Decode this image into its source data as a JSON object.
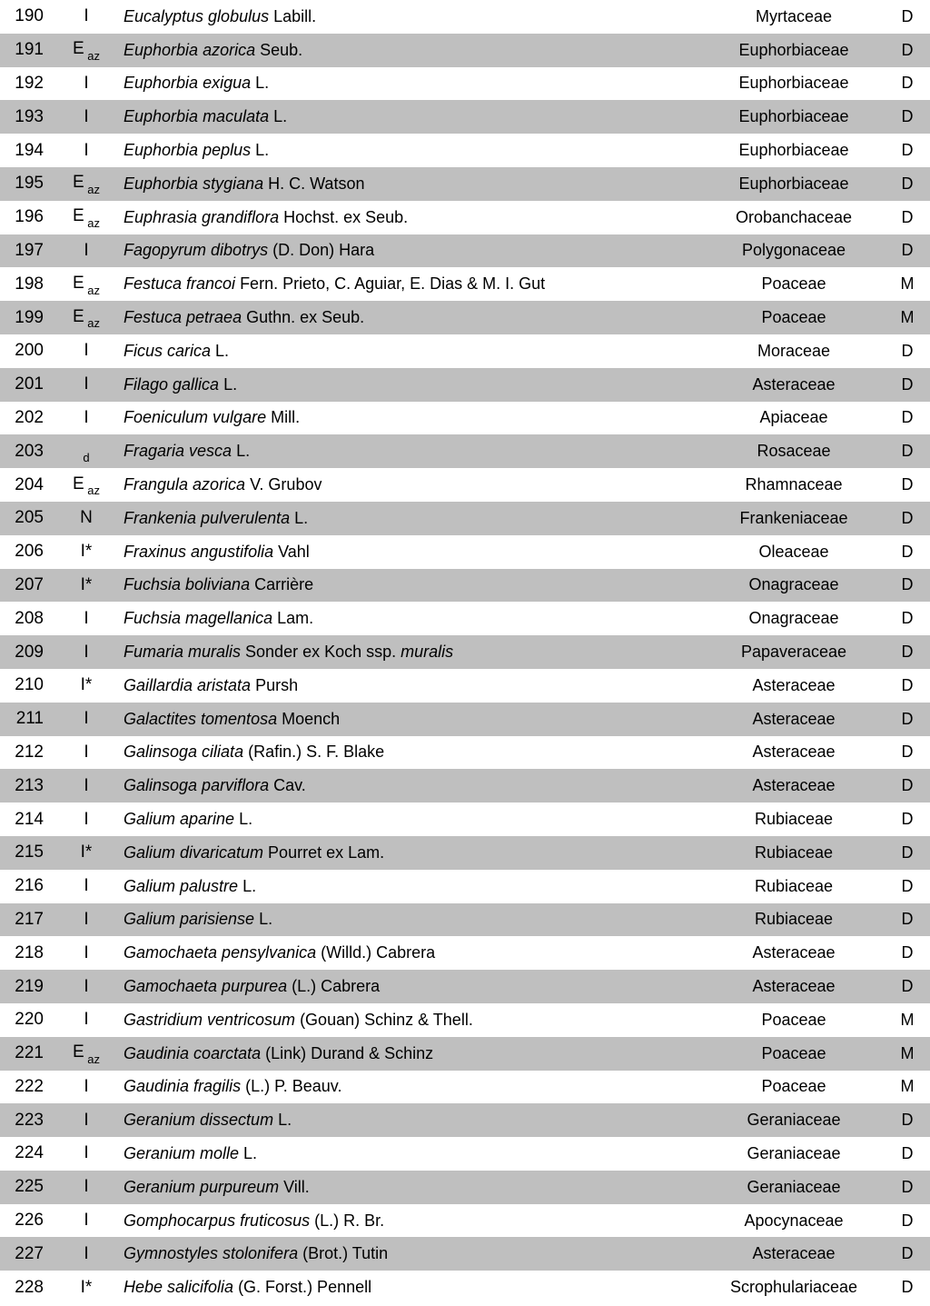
{
  "table": {
    "background_odd": "#ffffff",
    "background_even": "#bfbfbf",
    "rows": [
      {
        "num": "190",
        "status": "I",
        "sub": "",
        "genus_species": "Eucalyptus globulus",
        "author": " Labill.",
        "ssp_label": "",
        "ssp_name": "",
        "family": "Myrtaceae",
        "code": "D"
      },
      {
        "num": "191",
        "status": "E",
        "sub": "az",
        "genus_species": "Euphorbia azorica",
        "author": " Seub.",
        "ssp_label": "",
        "ssp_name": "",
        "family": "Euphorbiaceae",
        "code": "D"
      },
      {
        "num": "192",
        "status": "I",
        "sub": "",
        "genus_species": "Euphorbia exigua",
        "author": " L.",
        "ssp_label": "",
        "ssp_name": "",
        "family": "Euphorbiaceae",
        "code": "D"
      },
      {
        "num": "193",
        "status": "I",
        "sub": "",
        "genus_species": "Euphorbia maculata",
        "author": " L.",
        "ssp_label": "",
        "ssp_name": "",
        "family": "Euphorbiaceae",
        "code": "D"
      },
      {
        "num": "194",
        "status": "I",
        "sub": "",
        "genus_species": "Euphorbia peplus",
        "author": " L.",
        "ssp_label": "",
        "ssp_name": "",
        "family": "Euphorbiaceae",
        "code": "D"
      },
      {
        "num": "195",
        "status": "E",
        "sub": "az",
        "genus_species": "Euphorbia stygiana",
        "author": " H. C. Watson",
        "ssp_label": "",
        "ssp_name": "",
        "family": "Euphorbiaceae",
        "code": "D"
      },
      {
        "num": "196",
        "status": "E",
        "sub": "az",
        "genus_species": "Euphrasia grandiflora",
        "author": " Hochst. ex Seub.",
        "ssp_label": "",
        "ssp_name": "",
        "family": "Orobanchaceae",
        "code": "D"
      },
      {
        "num": "197",
        "status": "I",
        "sub": "",
        "genus_species": "Fagopyrum dibotrys",
        "author": " (D. Don) Hara",
        "ssp_label": "",
        "ssp_name": "",
        "family": "Polygonaceae",
        "code": "D"
      },
      {
        "num": "198",
        "status": "E",
        "sub": "az",
        "genus_species": "Festuca francoi",
        "author": " Fern. Prieto, C. Aguiar, E. Dias & M. I. Gut",
        "ssp_label": "",
        "ssp_name": "",
        "family": "Poaceae",
        "code": "M"
      },
      {
        "num": "199",
        "status": "E",
        "sub": "az",
        "genus_species": "Festuca petraea",
        "author": " Guthn. ex Seub.",
        "ssp_label": "",
        "ssp_name": "",
        "family": "Poaceae",
        "code": "M"
      },
      {
        "num": "200",
        "status": "I",
        "sub": "",
        "genus_species": "Ficus carica",
        "author": " L.",
        "ssp_label": "",
        "ssp_name": "",
        "family": "Moraceae",
        "code": "D"
      },
      {
        "num": "201",
        "status": "I",
        "sub": "",
        "genus_species": "Filago gallica",
        "author": " L.",
        "ssp_label": "",
        "ssp_name": "",
        "family": "Asteraceae",
        "code": "D"
      },
      {
        "num": "202",
        "status": "I",
        "sub": "",
        "genus_species": "Foeniculum vulgare",
        "author": " Mill.",
        "ssp_label": "",
        "ssp_name": "",
        "family": "Apiaceae",
        "code": "D"
      },
      {
        "num": "203",
        "status": "",
        "sub": "d",
        "genus_species": "Fragaria vesca",
        "author": " L.",
        "ssp_label": "",
        "ssp_name": "",
        "family": "Rosaceae",
        "code": "D"
      },
      {
        "num": "204",
        "status": "E",
        "sub": "az",
        "genus_species": "Frangula azorica",
        "author": " V. Grubov",
        "ssp_label": "",
        "ssp_name": "",
        "family": "Rhamnaceae",
        "code": "D"
      },
      {
        "num": "205",
        "status": "N",
        "sub": "",
        "genus_species": "Frankenia pulverulenta",
        "author": " L.",
        "ssp_label": "",
        "ssp_name": "",
        "family": "Frankeniaceae",
        "code": "D"
      },
      {
        "num": "206",
        "status": "I*",
        "sub": "",
        "genus_species": "Fraxinus angustifolia",
        "author": " Vahl",
        "ssp_label": "",
        "ssp_name": "",
        "family": "Oleaceae",
        "code": "D"
      },
      {
        "num": "207",
        "status": "I*",
        "sub": "",
        "genus_species": "Fuchsia boliviana ",
        "author": " Carrière",
        "ssp_label": "",
        "ssp_name": "",
        "family": "Onagraceae",
        "code": "D"
      },
      {
        "num": "208",
        "status": "I",
        "sub": "",
        "genus_species": "Fuchsia magellanica",
        "author": " Lam.",
        "ssp_label": "",
        "ssp_name": "",
        "family": "Onagraceae",
        "code": "D"
      },
      {
        "num": "209",
        "status": "I",
        "sub": "",
        "genus_species": "Fumaria muralis",
        "author": " Sonder ex Koch ",
        "ssp_label": "ssp. ",
        "ssp_name": "muralis",
        "family": "Papaveraceae",
        "code": "D"
      },
      {
        "num": "210",
        "status": "I*",
        "sub": "",
        "genus_species": "Gaillardia aristata",
        "author": " Pursh",
        "ssp_label": "",
        "ssp_name": "",
        "family": "Asteraceae",
        "code": "D"
      },
      {
        "num": "211",
        "status": "I",
        "sub": "",
        "genus_species": "Galactites tomentosa",
        "author": " Moench",
        "ssp_label": "",
        "ssp_name": "",
        "family": "Asteraceae",
        "code": "D"
      },
      {
        "num": "212",
        "status": "I",
        "sub": "",
        "genus_species": "Galinsoga ciliata",
        "author": " (Rafin.) S. F. Blake",
        "ssp_label": "",
        "ssp_name": "",
        "family": "Asteraceae",
        "code": "D"
      },
      {
        "num": "213",
        "status": "I",
        "sub": "",
        "genus_species": "Galinsoga parviflora",
        "author": " Cav.",
        "ssp_label": "",
        "ssp_name": "",
        "family": "Asteraceae",
        "code": "D"
      },
      {
        "num": "214",
        "status": "I",
        "sub": "",
        "genus_species": "Galium aparine",
        "author": " L.",
        "ssp_label": "",
        "ssp_name": "",
        "family": "Rubiaceae",
        "code": "D"
      },
      {
        "num": "215",
        "status": "I*",
        "sub": "",
        "genus_species": "Galium divaricatum",
        "author": " Pourret ex Lam.",
        "ssp_label": "",
        "ssp_name": "",
        "family": "Rubiaceae",
        "code": "D"
      },
      {
        "num": "216",
        "status": "I",
        "sub": "",
        "genus_species": "Galium palustre",
        "author": " L.",
        "ssp_label": "",
        "ssp_name": "",
        "family": "Rubiaceae",
        "code": "D"
      },
      {
        "num": "217",
        "status": "I",
        "sub": "",
        "genus_species": "Galium parisiense",
        "author": " L.",
        "ssp_label": "",
        "ssp_name": "",
        "family": "Rubiaceae",
        "code": "D"
      },
      {
        "num": "218",
        "status": "I",
        "sub": "",
        "genus_species": "Gamochaeta pensylvanica",
        "author": " (Willd.) Cabrera",
        "ssp_label": "",
        "ssp_name": "",
        "family": "Asteraceae",
        "code": "D"
      },
      {
        "num": "219",
        "status": "I",
        "sub": "",
        "genus_species": "Gamochaeta purpurea",
        "author": " (L.) Cabrera",
        "ssp_label": "",
        "ssp_name": "",
        "family": "Asteraceae",
        "code": "D"
      },
      {
        "num": "220",
        "status": "I",
        "sub": "",
        "genus_species": "Gastridium ventricosum",
        "author": " (Gouan) Schinz & Thell.",
        "ssp_label": "",
        "ssp_name": "",
        "family": "Poaceae",
        "code": "M"
      },
      {
        "num": "221",
        "status": "E",
        "sub": "az",
        "genus_species": "Gaudinia coarctata",
        "author": " (Link) Durand & Schinz",
        "ssp_label": "",
        "ssp_name": "",
        "family": "Poaceae",
        "code": "M"
      },
      {
        "num": "222",
        "status": "I",
        "sub": "",
        "genus_species": "Gaudinia fragilis",
        "author": " (L.) P. Beauv.",
        "ssp_label": "",
        "ssp_name": "",
        "family": "Poaceae",
        "code": "M"
      },
      {
        "num": "223",
        "status": "I",
        "sub": "",
        "genus_species": "Geranium dissectum",
        "author": " L.",
        "ssp_label": "",
        "ssp_name": "",
        "family": "Geraniaceae",
        "code": "D"
      },
      {
        "num": "224",
        "status": "I",
        "sub": "",
        "genus_species": "Geranium molle",
        "author": " L.",
        "ssp_label": "",
        "ssp_name": "",
        "family": "Geraniaceae",
        "code": "D"
      },
      {
        "num": "225",
        "status": "I",
        "sub": "",
        "genus_species": "Geranium purpureum",
        "author": " Vill.",
        "ssp_label": "",
        "ssp_name": "",
        "family": "Geraniaceae",
        "code": "D"
      },
      {
        "num": "226",
        "status": "I",
        "sub": "",
        "genus_species": "Gomphocarpus fruticosus",
        "author": " (L.) R. Br.",
        "ssp_label": "",
        "ssp_name": "",
        "family": "Apocynaceae",
        "code": "D"
      },
      {
        "num": "227",
        "status": "I",
        "sub": "",
        "genus_species": "Gymnostyles stolonifera",
        "author": " (Brot.) Tutin",
        "ssp_label": "",
        "ssp_name": "",
        "family": "Asteraceae",
        "code": "D"
      },
      {
        "num": "228",
        "status": "I*",
        "sub": "",
        "genus_species": "Hebe salicifolia",
        "author": " (G. Forst.) Pennell",
        "ssp_label": "",
        "ssp_name": "",
        "family": "Scrophulariaceae",
        "code": "D"
      }
    ]
  }
}
